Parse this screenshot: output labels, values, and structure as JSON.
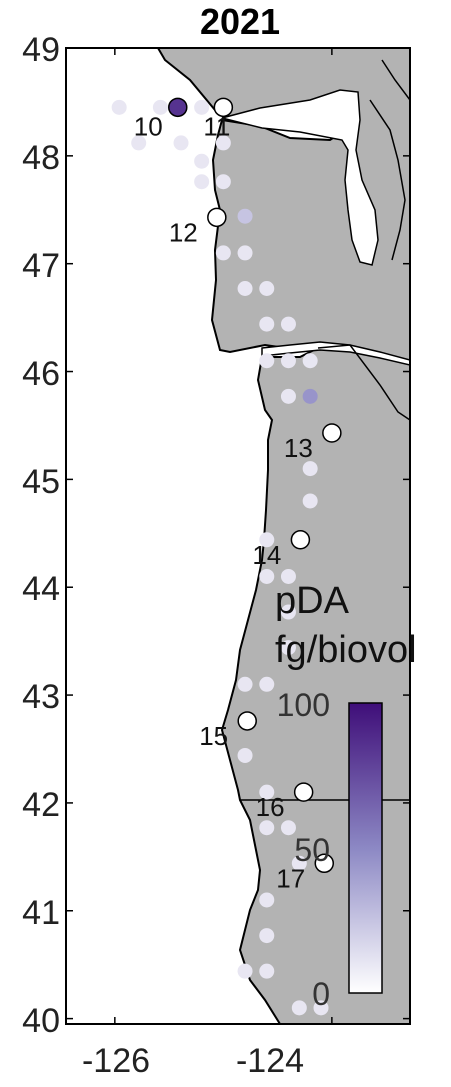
{
  "title": "2021",
  "x_ticks": [
    "-126",
    "-124"
  ],
  "y_ticks": [
    "49",
    "48",
    "47",
    "46",
    "45",
    "44",
    "43",
    "42",
    "41",
    "40"
  ],
  "colorbar": {
    "label_line1": "pDA",
    "label_line2": "fg/biovol",
    "ticks": [
      "100",
      "50",
      "0"
    ],
    "color_low": "#ffffff",
    "color_mid": "#8c88c4",
    "color_high": "#3f0e79"
  },
  "stations": [
    {
      "label": "10",
      "lon": -125.42,
      "lat": 48.45,
      "pda": 85
    },
    {
      "label": "11",
      "lon": -125.0,
      "lat": 48.45,
      "pda": 0
    },
    {
      "label": "12",
      "lon": -125.06,
      "lat": 47.43,
      "pda": 0
    },
    {
      "label": "13",
      "lon": -124.0,
      "lat": 45.43,
      "pda": 0
    },
    {
      "label": "14",
      "lon": -124.29,
      "lat": 44.44,
      "pda": 0
    },
    {
      "label": "15",
      "lon": -124.78,
      "lat": 42.76,
      "pda": 0
    },
    {
      "label": "16",
      "lon": -124.26,
      "lat": 42.1,
      "pda": 0
    },
    {
      "label": "17",
      "lon": -124.07,
      "lat": 41.44,
      "pda": 0
    }
  ],
  "samples": [
    [
      -125.58,
      48.45,
      6
    ],
    [
      -125.2,
      48.45,
      6
    ],
    [
      -125.0,
      48.12,
      6
    ],
    [
      -125.39,
      48.12,
      6
    ],
    [
      -125.78,
      48.12,
      6
    ],
    [
      -125.96,
      48.45,
      6
    ],
    [
      -125.2,
      47.95,
      6
    ],
    [
      -125.2,
      47.76,
      6
    ],
    [
      -125.0,
      47.76,
      6
    ],
    [
      -124.8,
      47.44,
      25
    ],
    [
      -125.0,
      47.1,
      6
    ],
    [
      -124.8,
      47.1,
      6
    ],
    [
      -124.6,
      46.77,
      6
    ],
    [
      -124.8,
      46.77,
      6
    ],
    [
      -124.4,
      46.44,
      6
    ],
    [
      -124.6,
      46.44,
      6
    ],
    [
      -124.2,
      46.1,
      10
    ],
    [
      -124.4,
      46.1,
      6
    ],
    [
      -124.6,
      46.1,
      6
    ],
    [
      -124.2,
      45.77,
      45
    ],
    [
      -124.4,
      45.77,
      6
    ],
    [
      -124.2,
      45.1,
      6
    ],
    [
      -124.2,
      44.8,
      6
    ],
    [
      -124.4,
      44.1,
      6
    ],
    [
      -124.6,
      44.1,
      6
    ],
    [
      -124.6,
      44.44,
      6
    ],
    [
      -124.4,
      43.77,
      6
    ],
    [
      -124.4,
      43.44,
      6
    ],
    [
      -124.6,
      43.1,
      6
    ],
    [
      -124.8,
      43.1,
      6
    ],
    [
      -124.8,
      42.44,
      6
    ],
    [
      -124.6,
      42.1,
      6
    ],
    [
      -124.4,
      41.77,
      6
    ],
    [
      -124.6,
      41.77,
      6
    ],
    [
      -124.3,
      41.44,
      6
    ],
    [
      -124.6,
      41.1,
      6
    ],
    [
      -124.6,
      40.77,
      6
    ],
    [
      -124.6,
      40.44,
      6
    ],
    [
      -124.8,
      40.44,
      6
    ],
    [
      -124.3,
      40.1,
      6
    ],
    [
      -124.1,
      40.1,
      6
    ]
  ]
}
